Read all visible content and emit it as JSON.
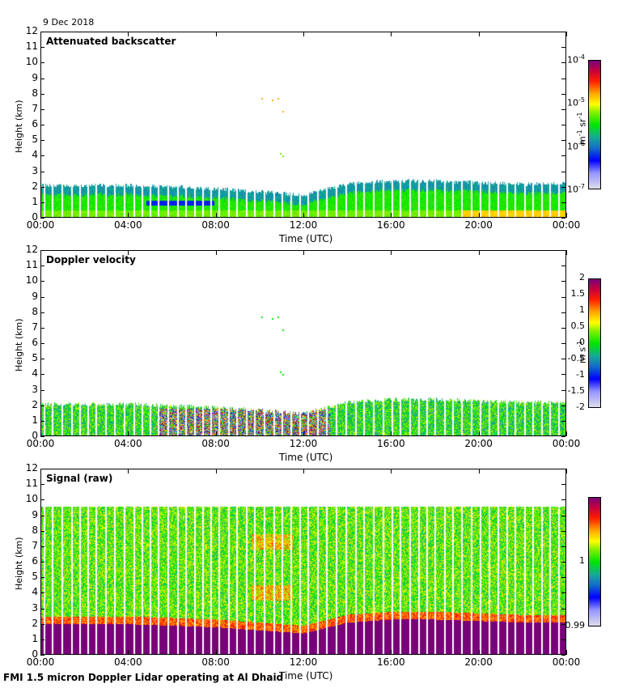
{
  "date": "9 Dec 2018",
  "footer": "FMI 1.5 micron Doppler Lidar operating at Al Dhaid",
  "chart_data": [
    {
      "type": "heatmap",
      "title": "Attenuated backscatter",
      "xlabel": "Time (UTC)",
      "ylabel": "Height (km)",
      "x_ticks": [
        "00:00",
        "04:00",
        "08:00",
        "12:00",
        "16:00",
        "20:00",
        "00:00"
      ],
      "y_ticks": [
        "0",
        "1",
        "2",
        "3",
        "4",
        "5",
        "6",
        "7",
        "8",
        "9",
        "10",
        "11",
        "12"
      ],
      "ylim": [
        0,
        12
      ],
      "xlim_hours": [
        0,
        24
      ],
      "colorbar": {
        "scale": "log",
        "range": [
          1e-07,
          0.0001
        ],
        "ticks": [
          {
            "base": "10",
            "exp": "-4"
          },
          {
            "base": "10",
            "exp": "-5"
          },
          {
            "base": "10",
            "exp": "-6"
          },
          {
            "base": "10",
            "exp": "-7"
          }
        ],
        "label_base1": "m",
        "label_exp1": "-1",
        "label_base2": " sr",
        "label_exp2": "-1"
      },
      "boundary_layer_top_km": [
        2.1,
        2.1,
        2.1,
        2.0,
        1.9,
        1.7,
        1.5,
        2.2,
        2.4,
        2.4,
        2.3,
        2.2,
        2.2
      ],
      "scattered_returns_km": [
        7.7,
        6.9,
        4.2,
        4.0
      ]
    },
    {
      "type": "heatmap",
      "title": "Doppler velocity",
      "xlabel": "Time (UTC)",
      "ylabel": "Height (km)",
      "x_ticks": [
        "00:00",
        "04:00",
        "08:00",
        "12:00",
        "16:00",
        "20:00",
        "00:00"
      ],
      "y_ticks": [
        "0",
        "1",
        "2",
        "3",
        "4",
        "5",
        "6",
        "7",
        "8",
        "9",
        "10",
        "11",
        "12"
      ],
      "ylim": [
        0,
        12
      ],
      "xlim_hours": [
        0,
        24
      ],
      "colorbar": {
        "scale": "linear",
        "range": [
          -2,
          2
        ],
        "ticks": [
          "2",
          "1.5",
          "1",
          "0.5",
          "0",
          "-0.5",
          "-1",
          "-1.5",
          "-2"
        ],
        "label_base1": "m",
        "label_exp1": "",
        "label_base2": " s",
        "label_exp2": "-1"
      }
    },
    {
      "type": "heatmap",
      "title": "Signal (raw)",
      "xlabel": "Time (UTC)",
      "ylabel": "Height (km)",
      "x_ticks": [
        "00:00",
        "04:00",
        "08:00",
        "12:00",
        "16:00",
        "20:00",
        "00:00"
      ],
      "y_ticks": [
        "0",
        "1",
        "2",
        "3",
        "4",
        "5",
        "6",
        "7",
        "8",
        "9",
        "10",
        "11",
        "12"
      ],
      "ylim": [
        0,
        12
      ],
      "xlim_hours": [
        0,
        24
      ],
      "data_top_km": 9.6,
      "colorbar": {
        "scale": "linear",
        "range": [
          0.99,
          1.01
        ],
        "ticks": [
          "1",
          "0.99"
        ]
      }
    }
  ]
}
